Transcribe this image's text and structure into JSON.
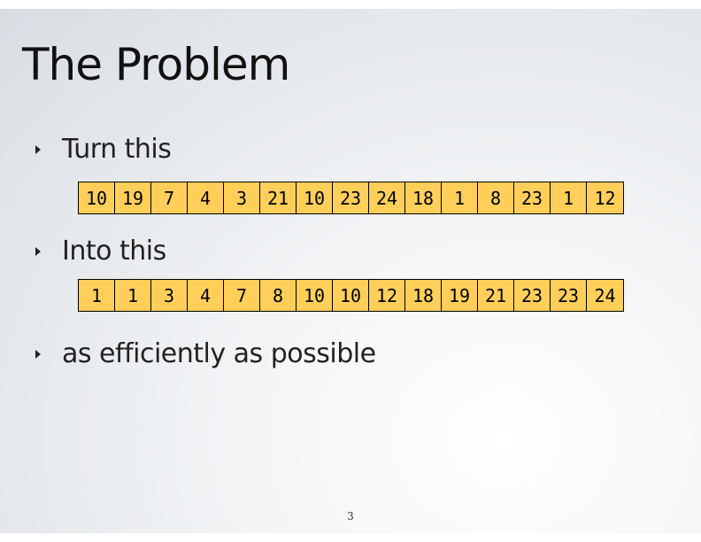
{
  "title": "The Problem",
  "bullets": [
    {
      "text": "Turn this"
    },
    {
      "text": "Into this"
    },
    {
      "text": "as efficiently as possible"
    }
  ],
  "unsorted_array": [
    10,
    19,
    7,
    4,
    3,
    21,
    10,
    23,
    24,
    18,
    1,
    8,
    23,
    1,
    12
  ],
  "sorted_array": [
    1,
    1,
    3,
    4,
    7,
    8,
    10,
    10,
    12,
    18,
    19,
    21,
    23,
    23,
    24
  ],
  "page_number": "3",
  "colors": {
    "cell_fill": "#ffcf5a",
    "cell_border": "#000000"
  }
}
